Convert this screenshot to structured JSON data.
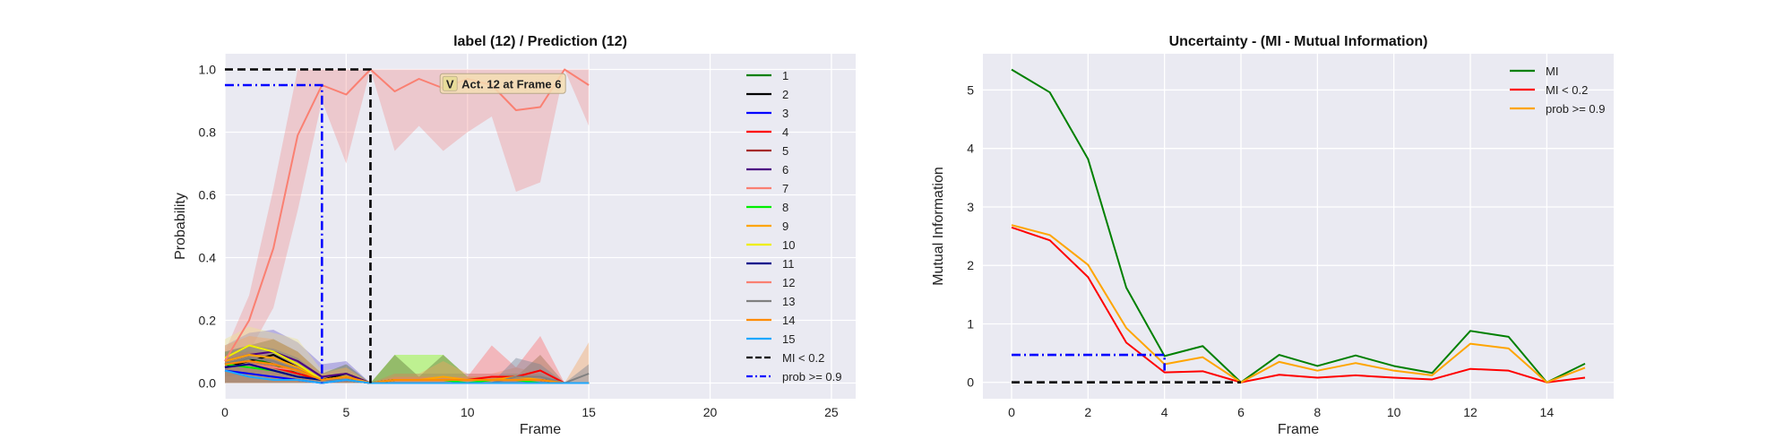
{
  "chart_data": [
    {
      "type": "line",
      "title": "label (12) / Prediction (12)",
      "xlabel": "Frame",
      "ylabel": "Probability",
      "xlim": [
        0,
        26
      ],
      "ylim": [
        -0.05,
        1.05
      ],
      "xticks": [
        0,
        5,
        10,
        15,
        20,
        25
      ],
      "yticks": [
        0.0,
        0.2,
        0.4,
        0.6,
        0.8,
        1.0
      ],
      "ytick_labels": [
        "0.0",
        "0.2",
        "0.4",
        "0.6",
        "0.8",
        "1.0"
      ],
      "grid": true,
      "legend_position": "right",
      "annotation": {
        "icon": "V",
        "text": "Act. 12 at Frame 6",
        "x": 10.2,
        "y": 0.955
      },
      "x": [
        0,
        1,
        2,
        3,
        4,
        5,
        6,
        7,
        8,
        9,
        10,
        11,
        12,
        13,
        14,
        15
      ],
      "series": [
        {
          "name": "1",
          "color": "#008000",
          "values": [
            0.06,
            0.08,
            0.06,
            0.03,
            0.01,
            0.02,
            0.0,
            0.01,
            0.01,
            0.01,
            0.01,
            0.01,
            0.01,
            0.01,
            0.0,
            0.0
          ]
        },
        {
          "name": "2",
          "color": "#000000",
          "values": [
            0.05,
            0.07,
            0.09,
            0.05,
            0.01,
            0.03,
            0.0,
            0.01,
            0.01,
            0.01,
            0.01,
            0.01,
            0.01,
            0.01,
            0.0,
            0.0
          ]
        },
        {
          "name": "3",
          "color": "#0000ff",
          "values": [
            0.04,
            0.03,
            0.02,
            0.01,
            0.0,
            0.01,
            0.0,
            0.0,
            0.0,
            0.0,
            0.0,
            0.0,
            0.0,
            0.0,
            0.0,
            0.0
          ]
        },
        {
          "name": "4",
          "color": "#ff0000",
          "values": [
            0.05,
            0.06,
            0.05,
            0.03,
            0.01,
            0.01,
            0.0,
            0.01,
            0.01,
            0.01,
            0.01,
            0.02,
            0.02,
            0.04,
            0.0,
            0.0
          ]
        },
        {
          "name": "5",
          "color": "#a52a2a",
          "values": [
            0.06,
            0.07,
            0.06,
            0.04,
            0.01,
            0.02,
            0.0,
            0.0,
            0.0,
            0.0,
            0.0,
            0.0,
            0.0,
            0.0,
            0.0,
            0.0
          ]
        },
        {
          "name": "6",
          "color": "#4b0082",
          "values": [
            0.07,
            0.09,
            0.1,
            0.07,
            0.02,
            0.03,
            0.0,
            0.01,
            0.01,
            0.01,
            0.01,
            0.01,
            0.01,
            0.01,
            0.0,
            0.0
          ]
        },
        {
          "name": "7",
          "color": "#fa8072",
          "values": [
            0.05,
            0.06,
            0.05,
            0.04,
            0.01,
            0.01,
            0.0,
            0.0,
            0.0,
            0.0,
            0.0,
            0.0,
            0.0,
            0.0,
            0.0,
            0.0
          ]
        },
        {
          "name": "8",
          "color": "#00ee00",
          "values": [
            0.06,
            0.05,
            0.04,
            0.02,
            0.01,
            0.01,
            0.0,
            0.01,
            0.01,
            0.01,
            0.0,
            0.01,
            0.01,
            0.0,
            0.0,
            0.0
          ]
        },
        {
          "name": "9",
          "color": "#ffa500",
          "values": [
            0.07,
            0.09,
            0.08,
            0.05,
            0.01,
            0.02,
            0.0,
            0.01,
            0.01,
            0.02,
            0.01,
            0.01,
            0.02,
            0.01,
            0.0,
            0.0
          ]
        },
        {
          "name": "10",
          "color": "#eeee00",
          "values": [
            0.08,
            0.12,
            0.1,
            0.06,
            0.01,
            0.02,
            0.0,
            0.0,
            0.0,
            0.0,
            0.0,
            0.0,
            0.0,
            0.0,
            0.0,
            0.0
          ]
        },
        {
          "name": "11",
          "color": "#00008b",
          "values": [
            0.05,
            0.06,
            0.04,
            0.02,
            0.01,
            0.01,
            0.0,
            0.0,
            0.0,
            0.0,
            0.0,
            0.0,
            0.0,
            0.0,
            0.0,
            0.0
          ]
        },
        {
          "name": "12",
          "color": "#fa8072",
          "values": [
            0.07,
            0.2,
            0.43,
            0.79,
            0.95,
            0.92,
            1.0,
            0.93,
            0.97,
            0.94,
            0.97,
            0.95,
            0.87,
            0.88,
            1.0,
            0.95
          ]
        },
        {
          "name": "13",
          "color": "#808080",
          "values": [
            0.06,
            0.08,
            0.07,
            0.04,
            0.01,
            0.01,
            0.0,
            0.0,
            0.0,
            0.0,
            0.0,
            0.0,
            0.02,
            0.02,
            0.0,
            0.03
          ]
        },
        {
          "name": "14",
          "color": "#ff8c00",
          "values": [
            0.06,
            0.07,
            0.06,
            0.04,
            0.01,
            0.02,
            0.0,
            0.01,
            0.01,
            0.01,
            0.01,
            0.01,
            0.01,
            0.01,
            0.0,
            0.0
          ]
        },
        {
          "name": "15",
          "color": "#1ea8ff",
          "values": [
            0.04,
            0.02,
            0.01,
            0.01,
            0.0,
            0.01,
            0.0,
            0.0,
            0.0,
            0.0,
            0.0,
            0.0,
            0.0,
            0.0,
            0.0,
            0.0
          ]
        }
      ],
      "bands": [
        {
          "series": "12",
          "color": "#f08080",
          "lower": [
            0.04,
            0.1,
            0.24,
            0.55,
            0.9,
            0.7,
            1.0,
            0.74,
            0.82,
            0.74,
            0.8,
            0.85,
            0.61,
            0.64,
            1.0,
            0.82
          ],
          "upper": [
            0.1,
            0.28,
            0.62,
            1.0,
            1.0,
            1.0,
            1.0,
            1.0,
            1.0,
            1.0,
            1.0,
            1.0,
            1.0,
            1.0,
            1.0,
            1.0
          ]
        },
        {
          "series": "6",
          "color": "#6a5acd",
          "lower": [
            0.02,
            0.03,
            0.04,
            0.02,
            0.0,
            0.0,
            0.0,
            0.0,
            0.0,
            0.0,
            0.0,
            0.0,
            0.0,
            0.0,
            0.0,
            0.0
          ],
          "upper": [
            0.12,
            0.16,
            0.17,
            0.13,
            0.06,
            0.07,
            0.0,
            0.03,
            0.03,
            0.03,
            0.03,
            0.03,
            0.03,
            0.03,
            0.0,
            0.0
          ]
        },
        {
          "series": "10",
          "color": "#f0e68c",
          "lower": [
            0.02,
            0.04,
            0.03,
            0.02,
            0.0,
            0.0,
            0.0,
            0.0,
            0.0,
            0.0,
            0.0,
            0.0,
            0.0,
            0.0,
            0.0,
            0.0
          ],
          "upper": [
            0.14,
            0.18,
            0.16,
            0.14,
            0.04,
            0.05,
            0.0,
            0.02,
            0.02,
            0.02,
            0.02,
            0.02,
            0.02,
            0.02,
            0.0,
            0.0
          ]
        },
        {
          "series": "8",
          "color": "#7cfc00",
          "lower": [
            0.0,
            0.0,
            0.0,
            0.0,
            0.0,
            0.0,
            0.0,
            0.0,
            0.0,
            0.0,
            0.0,
            0.0,
            0.0,
            0.0,
            0.0,
            0.0
          ],
          "upper": [
            0.1,
            0.1,
            0.08,
            0.05,
            0.02,
            0.03,
            0.0,
            0.09,
            0.09,
            0.09,
            0.02,
            0.02,
            0.03,
            0.0,
            0.0,
            0.0
          ]
        },
        {
          "series": "2",
          "color": "#556b2f",
          "lower": [
            0.0,
            0.0,
            0.0,
            0.0,
            0.0,
            0.0,
            0.0,
            0.0,
            0.0,
            0.0,
            0.0,
            0.0,
            0.0,
            0.0,
            0.0,
            0.0
          ],
          "upper": [
            0.1,
            0.12,
            0.14,
            0.1,
            0.03,
            0.06,
            0.0,
            0.09,
            0.02,
            0.09,
            0.02,
            0.02,
            0.02,
            0.09,
            0.0,
            0.0
          ]
        },
        {
          "series": "9",
          "color": "#f4a460",
          "lower": [
            0.0,
            0.0,
            0.0,
            0.0,
            0.0,
            0.0,
            0.0,
            0.0,
            0.0,
            0.0,
            0.0,
            0.0,
            0.0,
            0.0,
            0.0,
            0.0
          ],
          "upper": [
            0.12,
            0.15,
            0.14,
            0.1,
            0.03,
            0.05,
            0.0,
            0.03,
            0.03,
            0.07,
            0.03,
            0.03,
            0.05,
            0.03,
            0.0,
            0.13
          ]
        },
        {
          "series": "4",
          "color": "#ff6b6b",
          "lower": [
            0.0,
            0.0,
            0.0,
            0.0,
            0.0,
            0.0,
            0.0,
            0.0,
            0.0,
            0.0,
            0.0,
            0.0,
            0.0,
            0.0,
            0.0,
            0.0
          ],
          "upper": [
            0.09,
            0.1,
            0.09,
            0.06,
            0.02,
            0.02,
            0.0,
            0.02,
            0.02,
            0.02,
            0.02,
            0.12,
            0.05,
            0.15,
            0.0,
            0.0
          ]
        },
        {
          "series": "13",
          "color": "#708090",
          "lower": [
            0.0,
            0.0,
            0.0,
            0.0,
            0.0,
            0.0,
            0.0,
            0.0,
            0.0,
            0.0,
            0.0,
            0.0,
            0.0,
            0.0,
            0.0,
            0.0
          ],
          "upper": [
            0.1,
            0.12,
            0.11,
            0.08,
            0.02,
            0.02,
            0.0,
            0.0,
            0.0,
            0.0,
            0.0,
            0.0,
            0.08,
            0.06,
            0.0,
            0.06
          ]
        }
      ],
      "reference_lines": [
        {
          "name": "MI < 0.2",
          "color": "#000000",
          "dash": "dashed",
          "points": [
            [
              0,
              1.0
            ],
            [
              6,
              1.0
            ],
            [
              6,
              0.0
            ]
          ]
        },
        {
          "name": "prob >= 0.9",
          "color": "#0000ff",
          "dash": "dashdot",
          "points": [
            [
              0,
              0.95
            ],
            [
              4,
              0.95
            ],
            [
              4,
              0.0
            ]
          ]
        }
      ]
    },
    {
      "type": "line",
      "title": "Uncertainty - (MI - Mutual Information)",
      "xlabel": "Frame",
      "ylabel": "Mutual Information",
      "xlim": [
        -0.75,
        15.75
      ],
      "ylim": [
        -0.28,
        5.62
      ],
      "xticks": [
        0,
        2,
        4,
        6,
        8,
        10,
        12,
        14
      ],
      "yticks": [
        0,
        1,
        2,
        3,
        4,
        5
      ],
      "grid": true,
      "legend_position": "top-right",
      "x": [
        0,
        1,
        2,
        3,
        4,
        5,
        6,
        7,
        8,
        9,
        10,
        11,
        12,
        13,
        14,
        15
      ],
      "series": [
        {
          "name": "MI",
          "color": "#008000",
          "values": [
            5.35,
            4.96,
            3.82,
            1.62,
            0.45,
            0.62,
            0.0,
            0.47,
            0.28,
            0.46,
            0.28,
            0.16,
            0.88,
            0.78,
            0.0,
            0.32
          ]
        },
        {
          "name": "MI < 0.2",
          "color": "#ff0000",
          "values": [
            2.65,
            2.43,
            1.8,
            0.68,
            0.17,
            0.19,
            0.0,
            0.13,
            0.08,
            0.12,
            0.08,
            0.05,
            0.23,
            0.2,
            0.0,
            0.08
          ]
        },
        {
          "name": "prob >= 0.9",
          "color": "#ffa500",
          "values": [
            2.69,
            2.52,
            2.01,
            0.93,
            0.31,
            0.43,
            0.0,
            0.35,
            0.2,
            0.33,
            0.2,
            0.12,
            0.66,
            0.58,
            0.0,
            0.25
          ]
        }
      ],
      "reference_lines": [
        {
          "color": "#000000",
          "dash": "dashed",
          "points": [
            [
              0,
              0.0
            ],
            [
              6,
              0.0
            ]
          ]
        },
        {
          "color": "#0000ff",
          "dash": "dashdot",
          "points": [
            [
              0,
              0.47
            ],
            [
              4,
              0.47
            ],
            [
              4,
              0.2
            ]
          ]
        }
      ]
    }
  ]
}
